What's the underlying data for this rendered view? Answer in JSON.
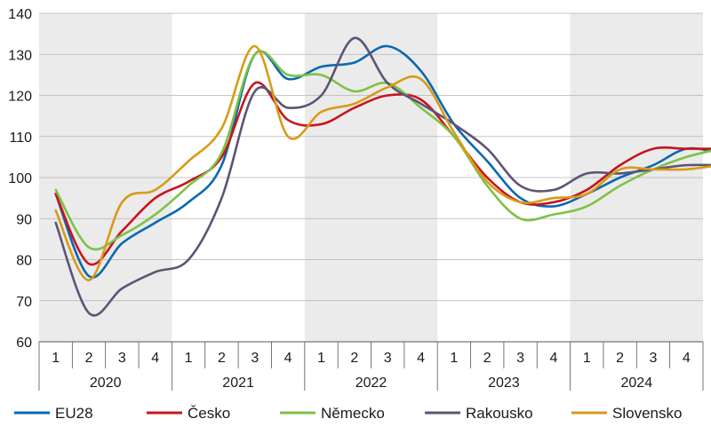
{
  "chart_data": {
    "type": "line",
    "title": "",
    "xlabel": "",
    "ylabel": "",
    "ylim": [
      60,
      140
    ],
    "yticks": [
      60,
      70,
      80,
      90,
      100,
      110,
      120,
      130,
      140
    ],
    "years": [
      "2020",
      "2021",
      "2022",
      "2023",
      "2024"
    ],
    "quarters": [
      "1",
      "2",
      "3",
      "4"
    ],
    "grid": "horizontal",
    "shaded_years": [
      "2020",
      "2022",
      "2024"
    ],
    "legend_position": "bottom",
    "series": [
      {
        "name": "EU28",
        "color": "#0a68b0",
        "values": [
          96,
          76,
          84,
          89,
          94,
          103,
          130,
          124,
          127,
          128,
          132,
          126,
          113,
          104,
          95,
          93,
          96,
          100,
          103,
          107,
          106
        ]
      },
      {
        "name": "Česko",
        "color": "#c8141e",
        "values": [
          96,
          79,
          87,
          95,
          99,
          105,
          123,
          114,
          113,
          117,
          120,
          119,
          110,
          100,
          94,
          94,
          97,
          103,
          107,
          107,
          107
        ]
      },
      {
        "name": "Německo",
        "color": "#7dc244",
        "values": [
          97,
          83,
          86,
          91,
          98,
          106,
          130,
          125,
          125,
          121,
          123,
          117,
          110,
          98,
          90,
          91,
          93,
          98,
          102,
          105,
          107
        ]
      },
      {
        "name": "Rakousko",
        "color": "#5d5475",
        "values": [
          89,
          67,
          73,
          77,
          80,
          95,
          121,
          117,
          120,
          134,
          123,
          118,
          113,
          107,
          98,
          97,
          101,
          101,
          102,
          103,
          103
        ]
      },
      {
        "name": "Slovensko",
        "color": "#d99a15",
        "values": [
          92,
          75,
          94,
          97,
          104,
          112,
          132,
          110,
          116,
          118,
          122,
          124,
          111,
          99,
          94,
          95,
          96,
          102,
          102,
          102,
          103
        ]
      }
    ]
  }
}
